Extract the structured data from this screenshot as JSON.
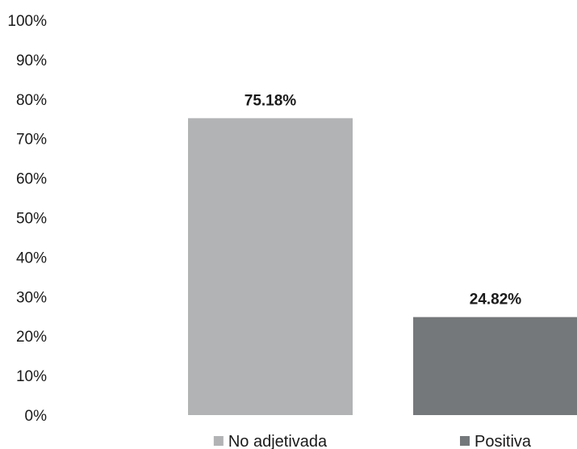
{
  "chart_data": {
    "type": "bar",
    "categories": [
      "No adjetivada",
      "Positiva"
    ],
    "values": [
      75.18,
      24.82
    ],
    "data_labels": [
      "75.18%",
      "24.82%"
    ],
    "colors": [
      "#b1b3b4",
      "#75787a"
    ],
    "ylim": [
      0,
      100
    ],
    "y_ticks": [
      0,
      10,
      20,
      30,
      40,
      50,
      60,
      70,
      80,
      90,
      100
    ],
    "y_tick_labels": [
      "0%",
      "10%",
      "20%",
      "30%",
      "40%",
      "50%",
      "60%",
      "70%",
      "80%",
      "90%",
      "100%"
    ],
    "grid": false,
    "legend_position": "bottom",
    "legend": [
      "No adjetivada",
      "Positiva"
    ]
  }
}
